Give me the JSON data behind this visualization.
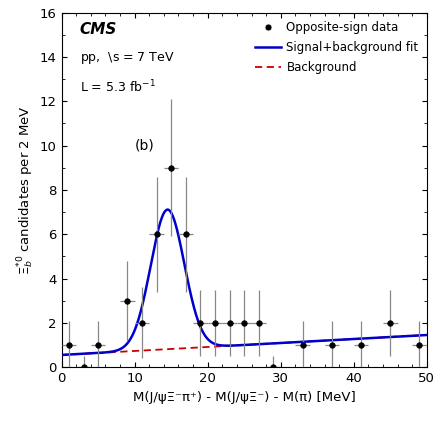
{
  "xlabel": "M(J/ψΞ⁻π⁺) - M(J/ψΞ⁻) - M(π) [MeV]",
  "ylabel": "$\\Xi_b^{*0}$ candidates per 2 MeV",
  "xlim": [
    0,
    50
  ],
  "ylim": [
    0,
    16
  ],
  "xticks": [
    0,
    10,
    20,
    30,
    40,
    50
  ],
  "yticks": [
    0,
    2,
    4,
    6,
    8,
    10,
    12,
    14,
    16
  ],
  "data_x": [
    1,
    3,
    5,
    9,
    11,
    13,
    15,
    17,
    19,
    21,
    23,
    25,
    27,
    29,
    33,
    37,
    41,
    45,
    49
  ],
  "data_y": [
    1.0,
    0.0,
    1.0,
    3.0,
    2.0,
    6.0,
    9.0,
    6.0,
    2.0,
    2.0,
    2.0,
    2.0,
    2.0,
    0.0,
    1.0,
    1.0,
    1.0,
    2.0,
    1.0
  ],
  "data_xerr": [
    1,
    1,
    1,
    1,
    1,
    1,
    1,
    1,
    1,
    1,
    1,
    1,
    1,
    1,
    1,
    1,
    1,
    1,
    1
  ],
  "data_yerr": [
    1.1,
    0.5,
    1.1,
    1.8,
    1.6,
    2.6,
    3.1,
    2.6,
    1.5,
    1.5,
    1.5,
    1.5,
    1.5,
    0.5,
    1.1,
    1.1,
    1.1,
    1.5,
    1.1
  ],
  "signal_peak_x": 14.5,
  "signal_peak_y": 6.3,
  "signal_sigma": 2.3,
  "bg_a": 0.55,
  "bg_b": 0.018,
  "signal_color": "#0000cc",
  "bg_color": "#cc0000",
  "data_color": "#000000",
  "ecolor": "#888888",
  "legend_label_data": "Opposite-sign data",
  "legend_label_signal": "Signal+background fit",
  "legend_label_bg": "Background",
  "cms_text": "CMS",
  "pp_text": "pp,  \\s = 7 TeV",
  "lumi_text": "L = 5.3 fb$^{-1}$",
  "panel_label": "(b)",
  "figwidth": 4.4,
  "figheight": 4.22,
  "dpi": 100
}
